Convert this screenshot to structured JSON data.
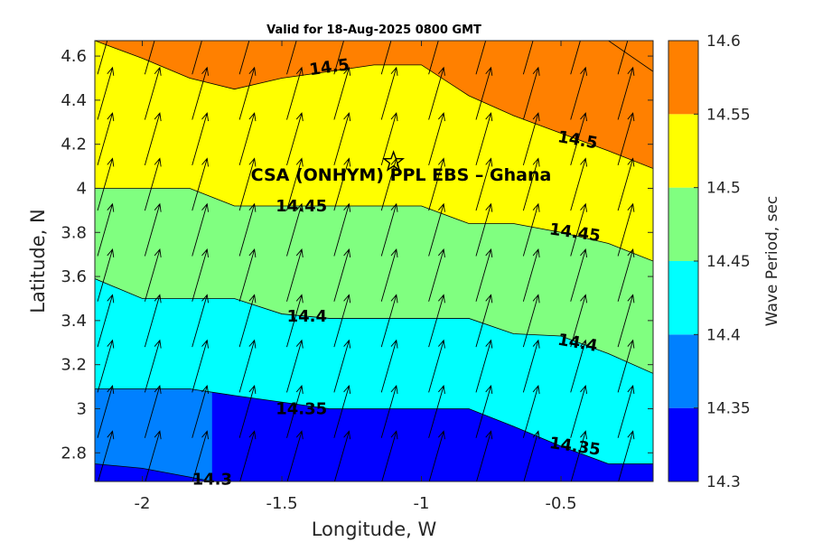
{
  "chart_data": {
    "type": "filled-contour",
    "title": "Valid for 18-Aug-2025 0800 GMT",
    "xlabel": "Longitude, W",
    "ylabel": "Latitude, N",
    "xlim": [
      -2.17,
      -0.17
    ],
    "ylim": [
      2.67,
      4.67
    ],
    "xticks": [
      -2,
      -1.5,
      -1,
      -0.5
    ],
    "xtick_labels": [
      "-2",
      "-1.5",
      "-1",
      "-0.5"
    ],
    "yticks": [
      2.8,
      3.0,
      3.2,
      3.4,
      3.6,
      3.8,
      4.0,
      4.2,
      4.4,
      4.6
    ],
    "ytick_labels": [
      "2.8",
      "3",
      "3.2",
      "3.4",
      "3.6",
      "3.8",
      "4",
      "4.2",
      "4.4",
      "4.6"
    ],
    "colorbar": {
      "label": "Wave Period, sec",
      "levels": [
        14.3,
        14.35,
        14.4,
        14.45,
        14.5,
        14.55,
        14.6
      ],
      "tick_labels": [
        "14.3",
        "14.35",
        "14.4",
        "14.45",
        "14.5",
        "14.55",
        "14.6"
      ],
      "colors": [
        "#0000ff",
        "#0080ff",
        "#00ffff",
        "#80ff80",
        "#ffff00",
        "#ff8000"
      ]
    },
    "contours": [
      {
        "level": 14.3,
        "points": [
          [
            -2.17,
            2.75
          ],
          [
            -2.0,
            2.73
          ],
          [
            -1.83,
            2.69
          ],
          [
            -1.75,
            2.67
          ]
        ]
      },
      {
        "level": 14.35,
        "points": [
          [
            -2.17,
            3.09
          ],
          [
            -1.83,
            3.09
          ],
          [
            -1.67,
            3.06
          ],
          [
            -1.33,
            3.0
          ],
          [
            -1.17,
            3.0
          ],
          [
            -0.83,
            3.0
          ],
          [
            -0.67,
            2.92
          ],
          [
            -0.5,
            2.83
          ],
          [
            -0.33,
            2.75
          ],
          [
            -0.17,
            2.75
          ]
        ]
      },
      {
        "level": 14.4,
        "points": [
          [
            -2.17,
            3.59
          ],
          [
            -2.0,
            3.5
          ],
          [
            -1.67,
            3.5
          ],
          [
            -1.5,
            3.43
          ],
          [
            -1.33,
            3.41
          ],
          [
            -1.17,
            3.41
          ],
          [
            -0.83,
            3.41
          ],
          [
            -0.67,
            3.34
          ],
          [
            -0.5,
            3.33
          ],
          [
            -0.33,
            3.25
          ],
          [
            -0.17,
            3.16
          ]
        ]
      },
      {
        "level": 14.45,
        "points": [
          [
            -2.17,
            4.0
          ],
          [
            -1.83,
            4.0
          ],
          [
            -1.67,
            3.92
          ],
          [
            -1.33,
            3.92
          ],
          [
            -1.0,
            3.92
          ],
          [
            -0.83,
            3.84
          ],
          [
            -0.67,
            3.84
          ],
          [
            -0.5,
            3.8
          ],
          [
            -0.33,
            3.75
          ],
          [
            -0.17,
            3.67
          ]
        ]
      },
      {
        "level": 14.5,
        "points": [
          [
            -2.17,
            4.67
          ],
          [
            -2.0,
            4.59
          ],
          [
            -1.83,
            4.5
          ],
          [
            -1.67,
            4.45
          ],
          [
            -1.5,
            4.5
          ],
          [
            -1.33,
            4.53
          ],
          [
            -1.17,
            4.56
          ],
          [
            -1.0,
            4.56
          ],
          [
            -0.83,
            4.42
          ],
          [
            -0.67,
            4.33
          ],
          [
            -0.5,
            4.25
          ],
          [
            -0.33,
            4.17
          ],
          [
            -0.17,
            4.09
          ]
        ]
      },
      {
        "level": 14.55,
        "points": [
          [
            -0.33,
            4.67
          ],
          [
            -0.17,
            4.53
          ]
        ]
      }
    ],
    "contour_labels": [
      {
        "text": "14.3",
        "x": -1.75,
        "y": 2.68,
        "angle": 0
      },
      {
        "text": "14.35",
        "x": -1.43,
        "y": 3.0,
        "angle": 0
      },
      {
        "text": "14.35",
        "x": -0.45,
        "y": 2.83,
        "angle": 8
      },
      {
        "text": "14.4",
        "x": -1.41,
        "y": 3.42,
        "angle": 0
      },
      {
        "text": "14.4",
        "x": -0.44,
        "y": 3.3,
        "angle": 10
      },
      {
        "text": "14.45",
        "x": -1.43,
        "y": 3.92,
        "angle": 0
      },
      {
        "text": "14.45",
        "x": -0.45,
        "y": 3.8,
        "angle": 8
      },
      {
        "text": "14.5",
        "x": -1.33,
        "y": 4.55,
        "angle": -8
      },
      {
        "text": "14.5",
        "x": -0.44,
        "y": 4.22,
        "angle": 10
      }
    ],
    "site": {
      "label": "CSA (ONHYM) PPL EBS  – Ghana",
      "x": -1.1,
      "y": 4.12,
      "marker": "star"
    },
    "vectors": {
      "description": "uniform arrow field",
      "direction_deg_from_north": 16,
      "grid_x": 12,
      "grid_y": 10
    }
  }
}
